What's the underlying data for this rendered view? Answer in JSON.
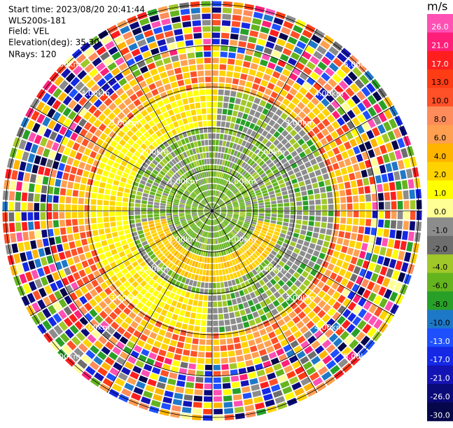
{
  "info": {
    "start_time": "Start time: 2023/08/20 20:41:44",
    "site": "WLS200s-181",
    "field": "Field: VEL",
    "elevation": "Elevation(deg): 35.30",
    "nrays": "NRays: 120"
  },
  "range_rings": [
    "1.00km",
    "2.00km",
    "3.00km",
    "4.00km",
    "5.00km"
  ],
  "colorbar": {
    "unit": "m/s",
    "ticks": [
      {
        "value": 26,
        "label": "26.0"
      },
      {
        "value": 21,
        "label": "21.0"
      },
      {
        "value": 17,
        "label": "17.0"
      },
      {
        "value": 13,
        "label": "13.0"
      },
      {
        "value": 10,
        "label": "10.0"
      },
      {
        "value": 8,
        "label": "8.0"
      },
      {
        "value": 6,
        "label": "6.0"
      },
      {
        "value": 4,
        "label": "4.0"
      },
      {
        "value": 2,
        "label": "2.0"
      },
      {
        "value": 1,
        "label": "1.0"
      },
      {
        "value": 0,
        "label": "0.0"
      },
      {
        "value": -1,
        "label": "-1.0"
      },
      {
        "value": -2,
        "label": "-2.0"
      },
      {
        "value": -4,
        "label": "-4.0"
      },
      {
        "value": -6,
        "label": "-6.0"
      },
      {
        "value": -8,
        "label": "-8.0"
      },
      {
        "value": -10,
        "label": "-10.0"
      },
      {
        "value": -13,
        "label": "-13.0"
      },
      {
        "value": -17,
        "label": "-17.0"
      },
      {
        "value": -21,
        "label": "-21.0"
      },
      {
        "value": -26,
        "label": "-26.0"
      },
      {
        "value": -30,
        "label": "-30.0"
      }
    ],
    "colors": [
      "#ff50b4",
      "#ff1e78",
      "#ff1e1e",
      "#ff3c14",
      "#ff5028",
      "#ff8c5a",
      "#ffa050",
      "#ffb400",
      "#ffd200",
      "#ffff00",
      "#ffff96",
      "#8c8c8c",
      "#6e6e6e",
      "#a0c828",
      "#64b41e",
      "#28a028",
      "#1e78c8",
      "#1e50ff",
      "#1428e6",
      "#1414b4",
      "#0a0a78",
      "#06064b"
    ]
  }
}
